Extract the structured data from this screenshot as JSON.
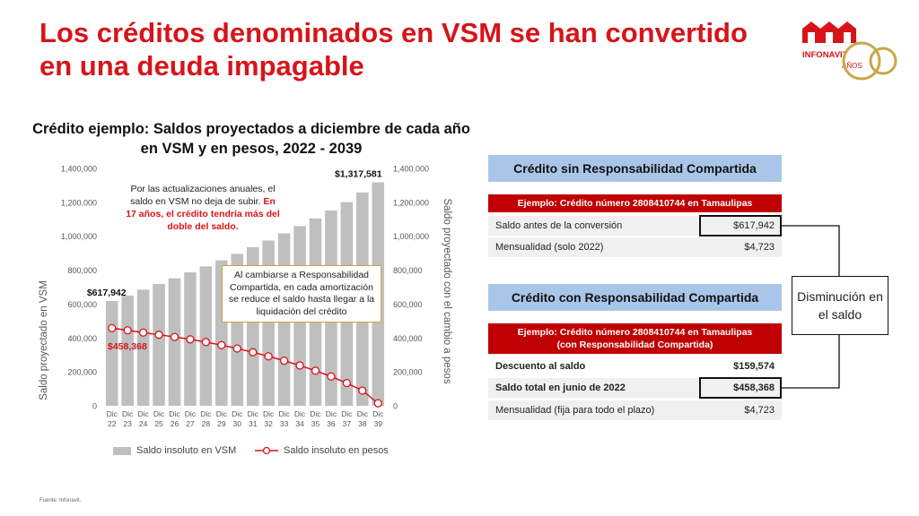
{
  "slide": {
    "title": "Los créditos denominados en VSM se han convertido en una deuda impagable",
    "source": "Fuente: Infonavit."
  },
  "logo": {
    "brand": "INFONAVIT",
    "sub": "AÑOS",
    "number": "50",
    "color": "#d7141a",
    "gold": "#c9a74a"
  },
  "chart_title": "Crédito ejemplo: Saldos proyectados a diciembre de cada año en VSM y en pesos, 2022 - 2039",
  "chart_data": {
    "type": "bar",
    "categories": [
      "Dic 22",
      "Dic 23",
      "Dic 24",
      "Dic 25",
      "Dic 26",
      "Dic 27",
      "Dic 28",
      "Dic 29",
      "Dic 30",
      "Dic 31",
      "Dic 32",
      "Dic 33",
      "Dic 34",
      "Dic 35",
      "Dic 36",
      "Dic 37",
      "Dic 38",
      "Dic 39"
    ],
    "ylabel": "Saldo proyectado en VSM",
    "y2label": "Saldo proyectado con el cambio a pesos",
    "ylim": [
      0,
      1400000
    ],
    "y2lim": [
      0,
      1400000
    ],
    "yticks": [
      "0",
      "200,000",
      "400,000",
      "600,000",
      "800,000",
      "1,000,000",
      "1,200,000",
      "1,400,000"
    ],
    "series": [
      {
        "name": "Saldo insoluto en VSM",
        "type": "bar",
        "color": "#bfbfbf",
        "values": [
          617942,
          650000,
          685000,
          718000,
          752000,
          787000,
          822000,
          858000,
          896000,
          935000,
          975000,
          1017000,
          1060000,
          1105000,
          1152000,
          1201000,
          1258000,
          1317581
        ]
      },
      {
        "name": "Saldo insoluto en pesos",
        "type": "line",
        "color": "#d7141a",
        "values": [
          458368,
          445000,
          432000,
          419000,
          406000,
          392000,
          376000,
          358000,
          338000,
          316000,
          292000,
          266000,
          238000,
          207000,
          173000,
          134000,
          90000,
          15000
        ]
      }
    ],
    "data_labels": {
      "first_bar": "$617,942",
      "last_bar": "$1,317,581",
      "first_point": "$458,368"
    },
    "legend_position": "bottom"
  },
  "annotations": {
    "note1_a": "Por las actualizaciones anuales, el saldo en VSM no deja de subir.",
    "note1_b": "En 17 años, el crédito tendría más del doble del saldo.",
    "note2": "Al cambiarse a Responsabilidad Compartida, en cada amortización se reduce el saldo hasta llegar a la liquidación del crédito"
  },
  "panel1": {
    "head": "Crédito sin Responsabilidad Compartida",
    "subhead": "Ejemplo: Crédito número 2808410744 en Tamaulipas",
    "rows": [
      {
        "label": "Saldo antes de la conversión",
        "value": "$617,942"
      },
      {
        "label": "Mensualidad (solo 2022)",
        "value": "$4,723"
      }
    ]
  },
  "panel2": {
    "head": "Crédito con Responsabilidad Compartida",
    "subhead1": "Ejemplo: Crédito número 2808410744 en Tamaulipas",
    "subhead2": "(con Responsabilidad Compartida)",
    "rows": [
      {
        "label": "Descuento al saldo",
        "value": "$159,574"
      },
      {
        "label": "Saldo total en junio de 2022",
        "value": "$458,368"
      },
      {
        "label": "Mensualidad (fija para todo el plazo)",
        "value": "$4,723"
      }
    ]
  },
  "callout": "Disminución en el saldo"
}
